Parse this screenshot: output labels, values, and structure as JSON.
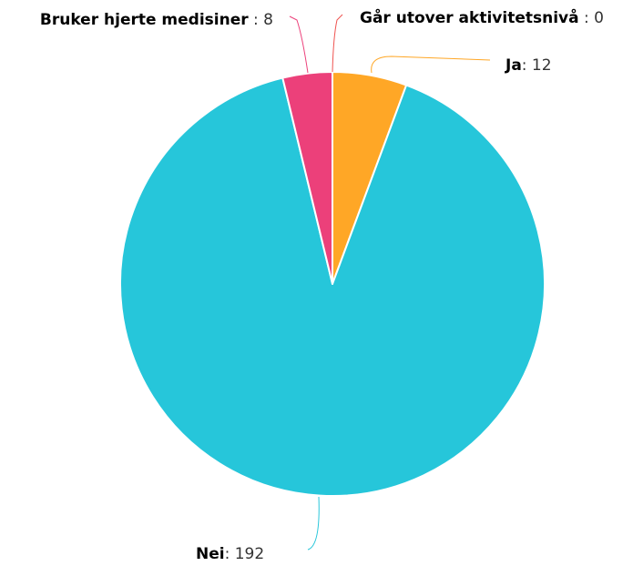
{
  "chart_data": {
    "type": "pie",
    "categories": [
      "Ja",
      "Nei",
      "Bruker hjerte medisiner",
      "Går utover aktivitetsnivå"
    ],
    "values": [
      12,
      192,
      8,
      0
    ],
    "value_labels": [
      ": 12",
      ": 192",
      " : 8",
      " : 0"
    ],
    "colors": [
      "#ffa726",
      "#26c6da",
      "#ec407a",
      "#ef5350"
    ]
  }
}
